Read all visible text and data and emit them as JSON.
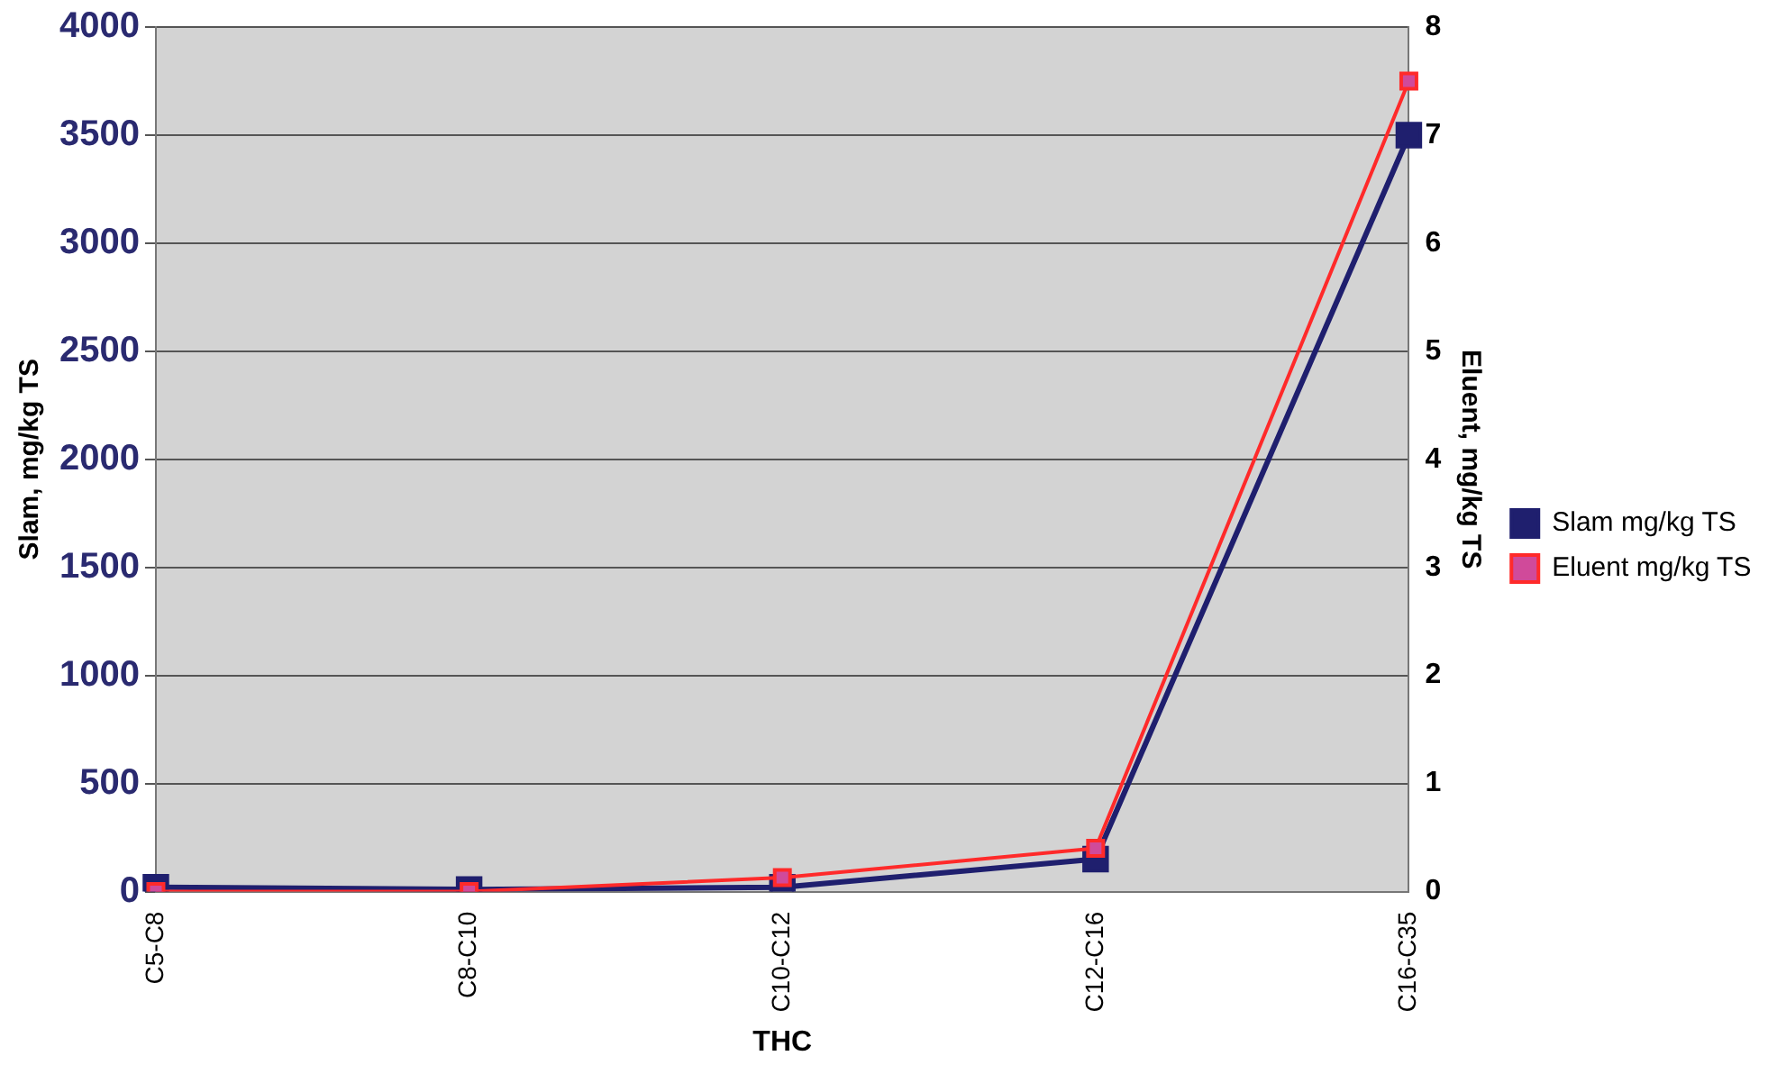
{
  "chart_data": {
    "type": "line",
    "xlabel": "THC",
    "ylabel": "Slam, mg/kg TS",
    "y2label": "Eluent, mg/kg TS",
    "categories": [
      "C5-C8",
      "C8-C10",
      "C10-C12",
      "C12-C16",
      "C16-C35"
    ],
    "series": [
      {
        "name": "Slam mg/kg TS",
        "color": "#1f1f6e",
        "values": [
          20,
          10,
          20,
          150,
          3500
        ]
      },
      {
        "name": "Eluent mg/kg TS",
        "color": "#ff2a2a",
        "values": [
          0,
          0,
          0.13,
          0.4,
          7.5
        ],
        "axis": "y2"
      }
    ],
    "ylim": [
      0,
      4000
    ],
    "yticks": [
      0,
      500,
      1000,
      1500,
      2000,
      2500,
      3000,
      3500,
      4000
    ],
    "y2lim": [
      0,
      8
    ],
    "y2ticks": [
      0,
      1,
      2,
      3,
      4,
      5,
      6,
      7,
      8
    ],
    "grid": "y",
    "legend": "right",
    "marker": "square",
    "line_style": "solid"
  }
}
